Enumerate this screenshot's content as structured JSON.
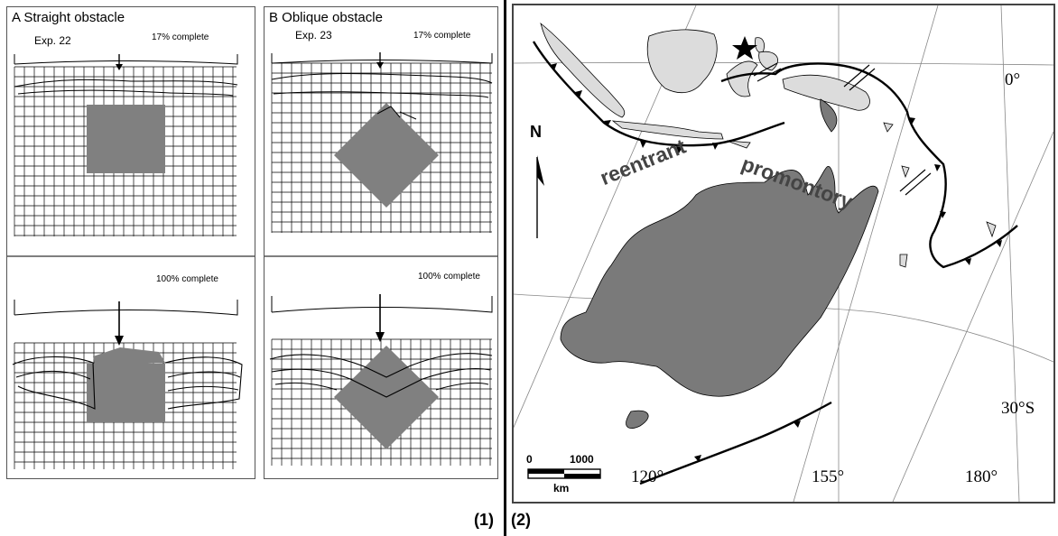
{
  "figure_labels": {
    "part1": "(1)",
    "part2": "(2)"
  },
  "panel_a": {
    "title": "A  Straight obstacle",
    "experiment": "Exp. 22",
    "top_status": "17% complete",
    "bottom_status": "100% complete"
  },
  "panel_b": {
    "title": "B  Oblique obstacle",
    "experiment": "Exp. 23",
    "top_status": "17% complete",
    "bottom_status": "100% complete"
  },
  "map": {
    "north": "N",
    "reentrant": "reentrant",
    "promontory": "promontory",
    "lat_0": "0°",
    "lat_30s": "30°S",
    "lon_120": "120°",
    "lon_155": "155°",
    "lon_180": "180°",
    "scale_start": "0",
    "scale_end": "1000",
    "scale_unit": "km",
    "colors": {
      "land": "#dcdcdc",
      "craton": "#7a7a7a",
      "lines": "#000000"
    }
  }
}
